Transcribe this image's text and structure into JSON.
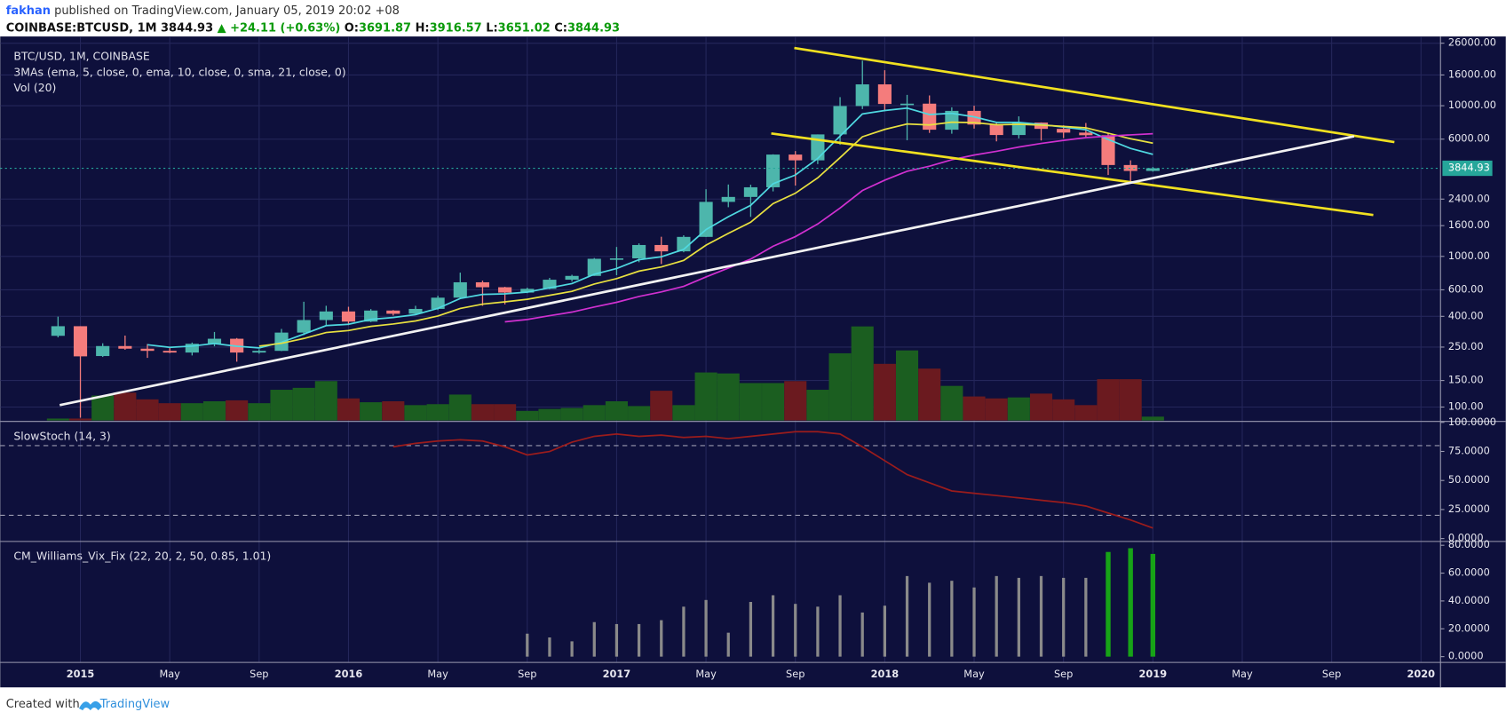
{
  "header": {
    "author": "fakhan",
    "published": " published on TradingView.com, January 05, 2019 20:02 +08",
    "symbol": "COINBASE:BTCUSD, 1M",
    "last": "3844.93",
    "change_arrow": "▲",
    "change": "+24.11 (+0.63%)",
    "ohlc": [
      {
        "label": "O:",
        "value": "3691.87"
      },
      {
        "label": "H:",
        "value": "3916.57"
      },
      {
        "label": "L:",
        "value": "3651.02"
      },
      {
        "label": "C:",
        "value": "3844.93"
      }
    ]
  },
  "footer": {
    "text": "Created with",
    "brand": "TradingView"
  },
  "chart_data": [
    {
      "type": "candlestick",
      "title": "BTC/USD, 1M, COINBASE",
      "annotations": [
        "3MAs (ema, 5, close, 0, ema, 10, close, 0, sma, 21, close, 0)",
        "Vol (20)"
      ],
      "x": [
        "2014-12",
        "2015-01",
        "2015-02",
        "2015-03",
        "2015-04",
        "2015-05",
        "2015-06",
        "2015-07",
        "2015-08",
        "2015-09",
        "2015-10",
        "2015-11",
        "2015-12",
        "2016-01",
        "2016-02",
        "2016-03",
        "2016-04",
        "2016-05",
        "2016-06",
        "2016-07",
        "2016-08",
        "2016-09",
        "2016-10",
        "2016-11",
        "2016-12",
        "2017-01",
        "2017-02",
        "2017-03",
        "2017-04",
        "2017-05",
        "2017-06",
        "2017-07",
        "2017-08",
        "2017-09",
        "2017-10",
        "2017-11",
        "2017-12",
        "2018-01",
        "2018-02",
        "2018-03",
        "2018-04",
        "2018-05",
        "2018-06",
        "2018-07",
        "2018-08",
        "2018-09",
        "2018-10",
        "2018-11",
        "2018-12",
        "2019-01"
      ],
      "open": [
        297,
        344,
        218,
        254,
        244,
        236,
        230,
        263,
        284,
        230,
        236,
        312,
        378,
        431,
        369,
        437,
        416,
        448,
        532,
        673,
        624,
        575,
        609,
        700,
        742,
        964,
        970,
        1190,
        1080,
        1347,
        2300,
        2480,
        2875,
        4740,
        4340,
        6450,
        9950,
        13860,
        10270,
        10320,
        6930,
        9240,
        7500,
        6390,
        7730,
        7020,
        6630,
        6370,
        4040,
        3691.87
      ],
      "high": [
        398,
        344,
        265,
        298,
        262,
        247,
        268,
        315,
        287,
        242,
        330,
        500,
        470,
        463,
        447,
        440,
        470,
        548,
        780,
        690,
        628,
        620,
        720,
        755,
        975,
        1155,
        1220,
        1350,
        1380,
        2790,
        3000,
        2990,
        4760,
        5000,
        6450,
        11400,
        19900,
        17200,
        11800,
        11700,
        9760,
        10000,
        7780,
        8500,
        7750,
        7410,
        7680,
        6600,
        4340,
        3916.57
      ],
      "low": [
        290,
        85,
        215,
        240,
        212,
        228,
        220,
        253,
        200,
        226,
        235,
        300,
        350,
        350,
        366,
        405,
        412,
        440,
        520,
        470,
        480,
        570,
        605,
        680,
        742,
        750,
        915,
        890,
        1065,
        1345,
        2120,
        1830,
        2700,
        2950,
        4100,
        5500,
        9500,
        9200,
        5900,
        6600,
        6520,
        7050,
        5800,
        6070,
        5880,
        6100,
        6200,
        3470,
        3130,
        3651.02
      ],
      "close": [
        344,
        217,
        254,
        244,
        236,
        230,
        263,
        284,
        230,
        236,
        312,
        378,
        431,
        369,
        437,
        416,
        448,
        532,
        673,
        624,
        575,
        609,
        700,
        742,
        964,
        970,
        1190,
        1080,
        1347,
        2300,
        2480,
        2875,
        4740,
        4340,
        6450,
        9950,
        13860,
        10270,
        10320,
        6930,
        9240,
        7500,
        6390,
        7730,
        7020,
        6630,
        6370,
        4040,
        3690,
        3844.93
      ],
      "up_color": "#4db6ac",
      "down_color": "#f47c7c",
      "log_scale": true,
      "grid": true,
      "ylim": [
        100,
        26000
      ],
      "yticks": [
        {
          "value": 26000,
          "label": "26000.00"
        },
        {
          "value": 16000,
          "label": "16000.00"
        },
        {
          "value": 10000,
          "label": "10000.00"
        },
        {
          "value": 6000,
          "label": "6000.00"
        },
        {
          "value": 2400,
          "label": "2400.00"
        },
        {
          "value": 1600,
          "label": "1600.00"
        },
        {
          "value": 1000,
          "label": "1000.00"
        },
        {
          "value": 600,
          "label": "600.00"
        },
        {
          "value": 400,
          "label": "400.00"
        },
        {
          "value": 250,
          "label": "250.00"
        },
        {
          "value": 150,
          "label": "150.00"
        },
        {
          "value": 100,
          "label": "100.00"
        }
      ],
      "price_line": {
        "value": 3844.93,
        "label": "3844.93",
        "color": "#26a69a"
      },
      "xticks": [
        {
          "value": "2015-01",
          "label": "2015"
        },
        {
          "value": "2015-05",
          "label": "May"
        },
        {
          "value": "2015-09",
          "label": "Sep"
        },
        {
          "value": "2016-01",
          "label": "2016"
        },
        {
          "value": "2016-05",
          "label": "May"
        },
        {
          "value": "2016-09",
          "label": "Sep"
        },
        {
          "value": "2017-01",
          "label": "2017"
        },
        {
          "value": "2017-05",
          "label": "May"
        },
        {
          "value": "2017-09",
          "label": "Sep"
        },
        {
          "value": "2018-01",
          "label": "2018"
        },
        {
          "value": "2018-05",
          "label": "May"
        },
        {
          "value": "2018-09",
          "label": "Sep"
        },
        {
          "value": "2019-01",
          "label": "2019"
        },
        {
          "value": "2019-05",
          "label": "May"
        },
        {
          "value": "2019-09",
          "label": "Sep"
        },
        {
          "value": "2020-01",
          "label": "2020"
        }
      ],
      "overlays": [
        {
          "color": "#4fd8e0",
          "values": [
            null,
            null,
            null,
            null,
            259,
            249,
            254,
            264,
            253,
            247,
            269,
            305,
            347,
            354,
            382,
            393,
            411,
            452,
            526,
            559,
            564,
            579,
            619,
            660,
            761,
            831,
            951,
            994,
            1112,
            1508,
            1832,
            2180,
            3033,
            3469,
            4463,
            6292,
            8815,
            9300,
            9640,
            8737,
            8905,
            8437,
            7755,
            7747,
            7505,
            7213,
            6932,
            5968,
            5209,
            4754
          ]
        },
        {
          "color": "#e8e040",
          "values": [
            null,
            null,
            null,
            null,
            null,
            null,
            null,
            null,
            null,
            254,
            265,
            285,
            312,
            322,
            343,
            356,
            373,
            402,
            451,
            482,
            499,
            519,
            552,
            586,
            655,
            712,
            799,
            850,
            940,
            1187,
            1422,
            1686,
            2241,
            2623,
            3319,
            4525,
            6222,
            6958,
            7569,
            7453,
            7778,
            7727,
            7484,
            7528,
            7436,
            7290,
            7123,
            6562,
            6040,
            5641
          ]
        },
        {
          "color": "#d030d0",
          "values": [
            null,
            null,
            null,
            null,
            null,
            null,
            null,
            null,
            null,
            null,
            null,
            null,
            null,
            null,
            null,
            null,
            null,
            null,
            null,
            null,
            368,
            381,
            404,
            427,
            461,
            496,
            542,
            581,
            632,
            730,
            837,
            959,
            1167,
            1353,
            1642,
            2095,
            2736,
            3203,
            3670,
            3967,
            4378,
            4707,
            4983,
            5318,
            5616,
            5886,
            6143,
            6279,
            6403,
            6522
          ]
        }
      ],
      "volume": {
        "values": [
          2,
          2,
          26,
          29,
          22,
          18,
          18,
          20,
          21,
          18,
          32,
          34,
          41,
          23,
          19,
          20,
          16,
          17,
          27,
          17,
          17,
          10,
          12,
          13,
          16,
          20,
          15,
          31,
          16,
          50,
          49,
          39,
          39,
          41,
          32,
          70,
          98,
          59,
          73,
          54,
          36,
          25,
          23,
          24,
          28,
          22,
          16,
          43,
          43,
          4
        ],
        "up_color": "#1b5e20",
        "down_color": "#6b1a1f",
        "ylim": [
          0,
          400
        ]
      }
    },
    {
      "type": "line",
      "title": "SlowStoch (14, 3)",
      "x": [
        "2014-12",
        "2015-01",
        "2015-02",
        "2015-03",
        "2015-04",
        "2015-05",
        "2015-06",
        "2015-07",
        "2015-08",
        "2015-09",
        "2015-10",
        "2015-11",
        "2015-12",
        "2016-01",
        "2016-02",
        "2016-03",
        "2016-04",
        "2016-05",
        "2016-06",
        "2016-07",
        "2016-08",
        "2016-09",
        "2016-10",
        "2016-11",
        "2016-12",
        "2017-01",
        "2017-02",
        "2017-03",
        "2017-04",
        "2017-05",
        "2017-06",
        "2017-07",
        "2017-08",
        "2017-09",
        "2017-10",
        "2017-11",
        "2017-12",
        "2018-01",
        "2018-02",
        "2018-03",
        "2018-04",
        "2018-05",
        "2018-06",
        "2018-07",
        "2018-08",
        "2018-09",
        "2018-10",
        "2018-11",
        "2018-12",
        "2019-01"
      ],
      "values": [
        null,
        null,
        null,
        null,
        null,
        null,
        null,
        null,
        null,
        null,
        null,
        null,
        null,
        null,
        null,
        79,
        82,
        84,
        85,
        84,
        79,
        72,
        75,
        83,
        88,
        90,
        88,
        89,
        87,
        88,
        86,
        88,
        90,
        92,
        92,
        90,
        79,
        67,
        55,
        48,
        41,
        39,
        37,
        35,
        33,
        31,
        28,
        22,
        16,
        9
      ],
      "color": "#9b1c1c",
      "ylim": [
        0,
        100
      ],
      "yticks": [
        {
          "value": 100,
          "label": "100.0000"
        },
        {
          "value": 75,
          "label": "75.0000"
        },
        {
          "value": 50,
          "label": "50.0000"
        },
        {
          "value": 25,
          "label": "25.0000"
        },
        {
          "value": 0,
          "label": "0.0000"
        }
      ],
      "levels": [
        80,
        20
      ]
    },
    {
      "type": "bar",
      "title": "CM_Williams_Vix_Fix (22, 20, 2, 50, 0.85, 1.01)",
      "x": [
        "2014-12",
        "2015-01",
        "2015-02",
        "2015-03",
        "2015-04",
        "2015-05",
        "2015-06",
        "2015-07",
        "2015-08",
        "2015-09",
        "2015-10",
        "2015-11",
        "2015-12",
        "2016-01",
        "2016-02",
        "2016-03",
        "2016-04",
        "2016-05",
        "2016-06",
        "2016-07",
        "2016-08",
        "2016-09",
        "2016-10",
        "2016-11",
        "2016-12",
        "2017-01",
        "2017-02",
        "2017-03",
        "2017-04",
        "2017-05",
        "2017-06",
        "2017-07",
        "2017-08",
        "2017-09",
        "2017-10",
        "2017-11",
        "2017-12",
        "2018-01",
        "2018-02",
        "2018-03",
        "2018-04",
        "2018-05",
        "2018-06",
        "2018-07",
        "2018-08",
        "2018-09",
        "2018-10",
        "2018-11",
        "2018-12",
        "2019-01"
      ],
      "values": [
        null,
        null,
        null,
        null,
        null,
        null,
        null,
        null,
        null,
        null,
        null,
        null,
        null,
        null,
        null,
        null,
        null,
        null,
        null,
        null,
        null,
        16.5,
        13.8,
        11,
        24.8,
        23.4,
        23.4,
        26.2,
        35.9,
        40.7,
        17.2,
        39.3,
        44.1,
        37.9,
        35.9,
        44.1,
        31.7,
        36.6,
        57.9,
        53.1,
        54.5,
        49.7,
        57.9,
        56.6,
        57.9,
        56.6,
        56.6,
        75.2,
        77.9,
        73.8
      ],
      "colors": [
        null,
        null,
        null,
        null,
        null,
        null,
        null,
        null,
        null,
        null,
        null,
        null,
        null,
        null,
        null,
        null,
        null,
        null,
        null,
        null,
        null,
        "#8a8a8a",
        "#8a8a8a",
        "#8a8a8a",
        "#8a8a8a",
        "#8a8a8a",
        "#8a8a8a",
        "#8a8a8a",
        "#8a8a8a",
        "#8a8a8a",
        "#8a8a8a",
        "#8a8a8a",
        "#8a8a8a",
        "#8a8a8a",
        "#8a8a8a",
        "#8a8a8a",
        "#8a8a8a",
        "#8a8a8a",
        "#8a8a8a",
        "#8a8a8a",
        "#8a8a8a",
        "#8a8a8a",
        "#8a8a8a",
        "#8a8a8a",
        "#8a8a8a",
        "#8a8a8a",
        "#8a8a8a",
        "#17a317",
        "#17a317",
        "#17a317"
      ],
      "ylim": [
        0,
        80
      ],
      "yticks": [
        {
          "value": 80,
          "label": "80.0000"
        },
        {
          "value": 60,
          "label": "60.0000"
        },
        {
          "value": 40,
          "label": "40.0000"
        },
        {
          "value": 20,
          "label": "20.0000"
        },
        {
          "value": 0,
          "label": "0.0000"
        }
      ]
    }
  ]
}
